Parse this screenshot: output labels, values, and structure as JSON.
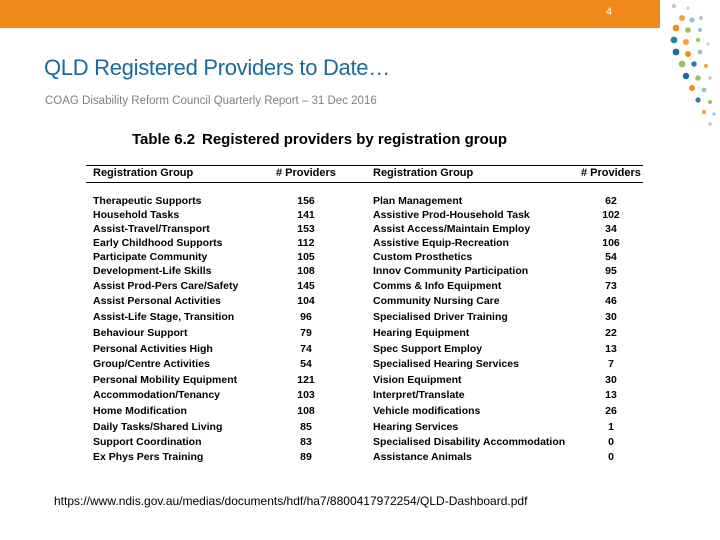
{
  "slide": {
    "page_number": "4",
    "title": "QLD Registered Providers to Date…",
    "subtitle": "COAG Disability Reform Council Quarterly Report – 31 Dec 2016",
    "source_url": "https://www.ndis.gov.au/medias/documents/hdf/ha7/8800417972254/QLD-Dashboard.pdf",
    "accent_color": "#f28a1b",
    "title_color": "#1a6a9a"
  },
  "table": {
    "number": "Table 6.2",
    "caption": "Registered providers by registration group",
    "headers": [
      "Registration Group",
      "# Providers",
      "Registration Group",
      "# Providers"
    ],
    "rows": [
      [
        "Therapeutic Supports",
        "156",
        "Plan Management",
        "62"
      ],
      [
        "Household Tasks",
        "141",
        "Assistive Prod-Household Task",
        "102"
      ],
      [
        "Assist-Travel/Transport",
        "153",
        "Assist Access/Maintain Employ",
        "34"
      ],
      [
        "Early Childhood Supports",
        "112",
        "Assistive Equip-Recreation",
        "106"
      ],
      [
        "Participate Community",
        "105",
        "Custom Prosthetics",
        "54"
      ],
      [
        "Development-Life Skills",
        "108",
        "Innov Community Participation",
        "95"
      ],
      [
        "Assist Prod-Pers Care/Safety",
        "145",
        "Comms & Info Equipment",
        "73"
      ],
      [
        "Assist Personal Activities",
        "104",
        "Community Nursing Care",
        "46"
      ],
      [
        "Assist-Life Stage, Transition",
        "96",
        "Specialised Driver Training",
        "30"
      ],
      [
        "Behaviour Support",
        "79",
        "Hearing Equipment",
        "22"
      ],
      [
        "Personal Activities High",
        "74",
        "Spec Support Employ",
        "13"
      ],
      [
        "Group/Centre Activities",
        "54",
        "Specialised Hearing Services",
        "7"
      ],
      [
        "Personal Mobility Equipment",
        "121",
        "Vision Equipment",
        "30"
      ],
      [
        "Accommodation/Tenancy",
        "103",
        "Interpret/Translate",
        "13"
      ],
      [
        "Home Modification",
        "108",
        "Vehicle modifications",
        "26"
      ],
      [
        "Daily Tasks/Shared Living",
        "85",
        "Hearing Services",
        "1"
      ],
      [
        "Support Coordination",
        "83",
        "Specialised Disability Accommodation",
        "0"
      ],
      [
        "Ex Phys Pers Training",
        "89",
        "Assistance Animals",
        "0"
      ]
    ]
  }
}
